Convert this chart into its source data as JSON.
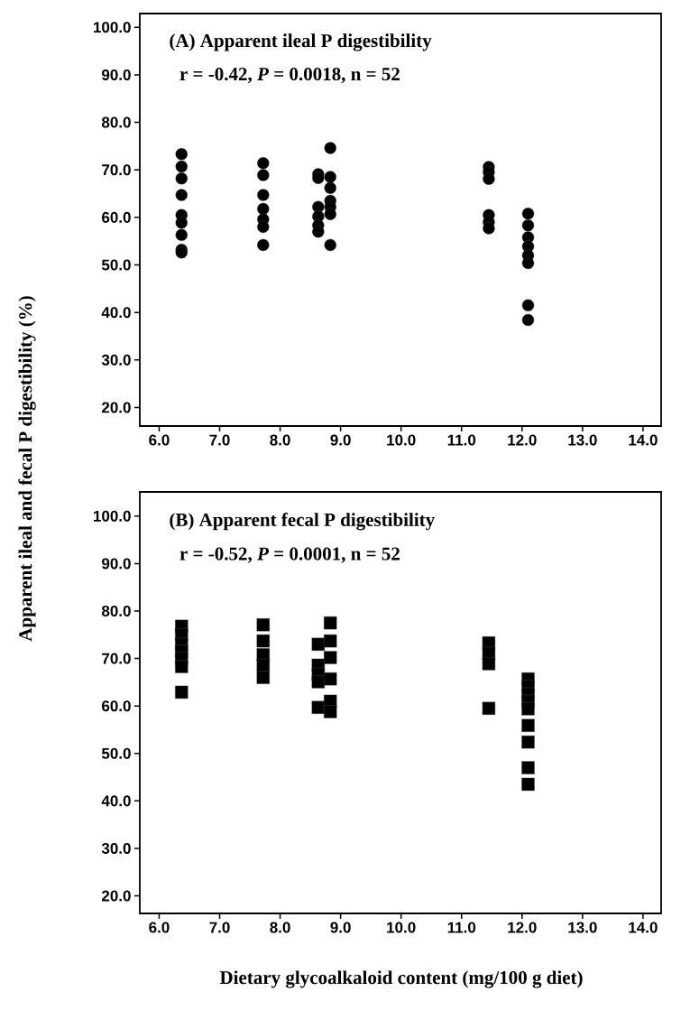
{
  "chart_data": [
    {
      "type": "scatter",
      "title": "(A) Apparent ileal P digestibility",
      "ylabel": "Apparent ileal and fecal P digestibility (%)",
      "annotations": [
        "r = -0.42, *P* = 0.0018, n = 52"
      ],
      "marker": "circle",
      "grid": false,
      "xlim": [
        5.68,
        14.3
      ],
      "ylim": [
        16.1,
        102.9
      ],
      "xticks": [
        {
          "value": 6,
          "label": "6.0"
        },
        {
          "value": 7,
          "label": "7.0"
        },
        {
          "value": 8,
          "label": "8.0"
        },
        {
          "value": 9,
          "label": "9.0"
        },
        {
          "value": 10,
          "label": "10.0"
        },
        {
          "value": 11,
          "label": "11.0"
        },
        {
          "value": 12,
          "label": "12.0"
        },
        {
          "value": 13,
          "label": "13.0"
        },
        {
          "value": 14,
          "label": "14.0"
        }
      ],
      "yticks": [
        {
          "value": 20,
          "label": "20.0"
        },
        {
          "value": 30,
          "label": "30.0"
        },
        {
          "value": 40,
          "label": "40.0"
        },
        {
          "value": 50,
          "label": "50.0"
        },
        {
          "value": 60,
          "label": "60.0"
        },
        {
          "value": 70,
          "label": "70.0"
        },
        {
          "value": 80,
          "label": "80.0"
        },
        {
          "value": 90,
          "label": "90.0"
        },
        {
          "value": 100,
          "label": "100.0"
        }
      ],
      "series": [
        {
          "color": "#000000",
          "x": [
            6.37,
            6.37,
            6.37,
            6.37,
            6.37,
            6.37,
            6.37,
            6.37,
            6.37,
            7.72,
            7.72,
            7.72,
            7.72,
            7.72,
            7.72,
            7.72,
            8.63,
            8.63,
            8.63,
            8.63,
            8.63,
            8.63,
            8.83,
            8.83,
            8.83,
            8.83,
            8.83,
            8.83,
            8.83,
            11.45,
            11.45,
            11.45,
            11.45,
            11.45,
            11.45,
            12.1,
            12.1,
            12.1,
            12.1,
            12.1,
            12.1,
            12.1,
            12.1
          ],
          "values": [
            73.3,
            70.7,
            68.2,
            64.7,
            60.5,
            58.9,
            56.3,
            53.2,
            52.6,
            71.4,
            68.9,
            64.7,
            61.8,
            59.6,
            58.0,
            54.2,
            69.1,
            68.3,
            62.2,
            60.2,
            58.3,
            57.0,
            74.6,
            68.5,
            66.2,
            63.5,
            62.2,
            60.7,
            54.2,
            70.6,
            69.5,
            68.1,
            60.5,
            59.0,
            57.7,
            60.8,
            58.3,
            55.8,
            53.9,
            52.0,
            50.4,
            41.5,
            38.4
          ]
        }
      ]
    },
    {
      "type": "scatter",
      "title": "(B) Apparent fecal P digestibility",
      "xlabel": "Dietary glycoalkaloid content (mg/100 g diet)",
      "annotations": [
        "r = -0.52, *P* = 0.0001, n = 52"
      ],
      "marker": "square",
      "grid": false,
      "xlim": [
        5.68,
        14.3
      ],
      "ylim": [
        16.3,
        105.1
      ],
      "xticks": [
        {
          "value": 6,
          "label": "6.0"
        },
        {
          "value": 7,
          "label": "7.0"
        },
        {
          "value": 8,
          "label": "8.0"
        },
        {
          "value": 9,
          "label": "9.0"
        },
        {
          "value": 10,
          "label": "10.0"
        },
        {
          "value": 11,
          "label": "11.0"
        },
        {
          "value": 12,
          "label": "12.0"
        },
        {
          "value": 13,
          "label": "13.0"
        },
        {
          "value": 14,
          "label": "14.0"
        }
      ],
      "yticks": [
        {
          "value": 20,
          "label": "20.0"
        },
        {
          "value": 30,
          "label": "30.0"
        },
        {
          "value": 40,
          "label": "40.0"
        },
        {
          "value": 50,
          "label": "50.0"
        },
        {
          "value": 60,
          "label": "60.0"
        },
        {
          "value": 70,
          "label": "70.0"
        },
        {
          "value": 80,
          "label": "80.0"
        },
        {
          "value": 90,
          "label": "90.0"
        },
        {
          "value": 100,
          "label": "100.0"
        }
      ],
      "series": [
        {
          "color": "#000000",
          "x": [
            6.37,
            6.37,
            6.37,
            6.37,
            6.37,
            6.37,
            6.37,
            7.72,
            7.72,
            7.72,
            7.72,
            7.72,
            8.63,
            8.63,
            8.63,
            8.63,
            8.63,
            8.83,
            8.83,
            8.83,
            8.83,
            8.83,
            8.83,
            11.45,
            11.45,
            11.45,
            11.45,
            12.1,
            12.1,
            12.1,
            12.1,
            12.1,
            12.1,
            12.1,
            12.1,
            12.1
          ],
          "values": [
            76.8,
            75.0,
            73.0,
            71.5,
            70.0,
            68.3,
            62.9,
            77.1,
            73.7,
            70.8,
            68.6,
            66.0,
            73.0,
            68.6,
            66.7,
            65.1,
            59.7,
            77.5,
            73.7,
            70.2,
            65.7,
            61.0,
            58.8,
            73.3,
            71.1,
            68.9,
            59.5,
            65.7,
            64.1,
            62.5,
            61.0,
            59.4,
            55.9,
            52.4,
            47.0,
            43.5
          ]
        }
      ]
    }
  ]
}
